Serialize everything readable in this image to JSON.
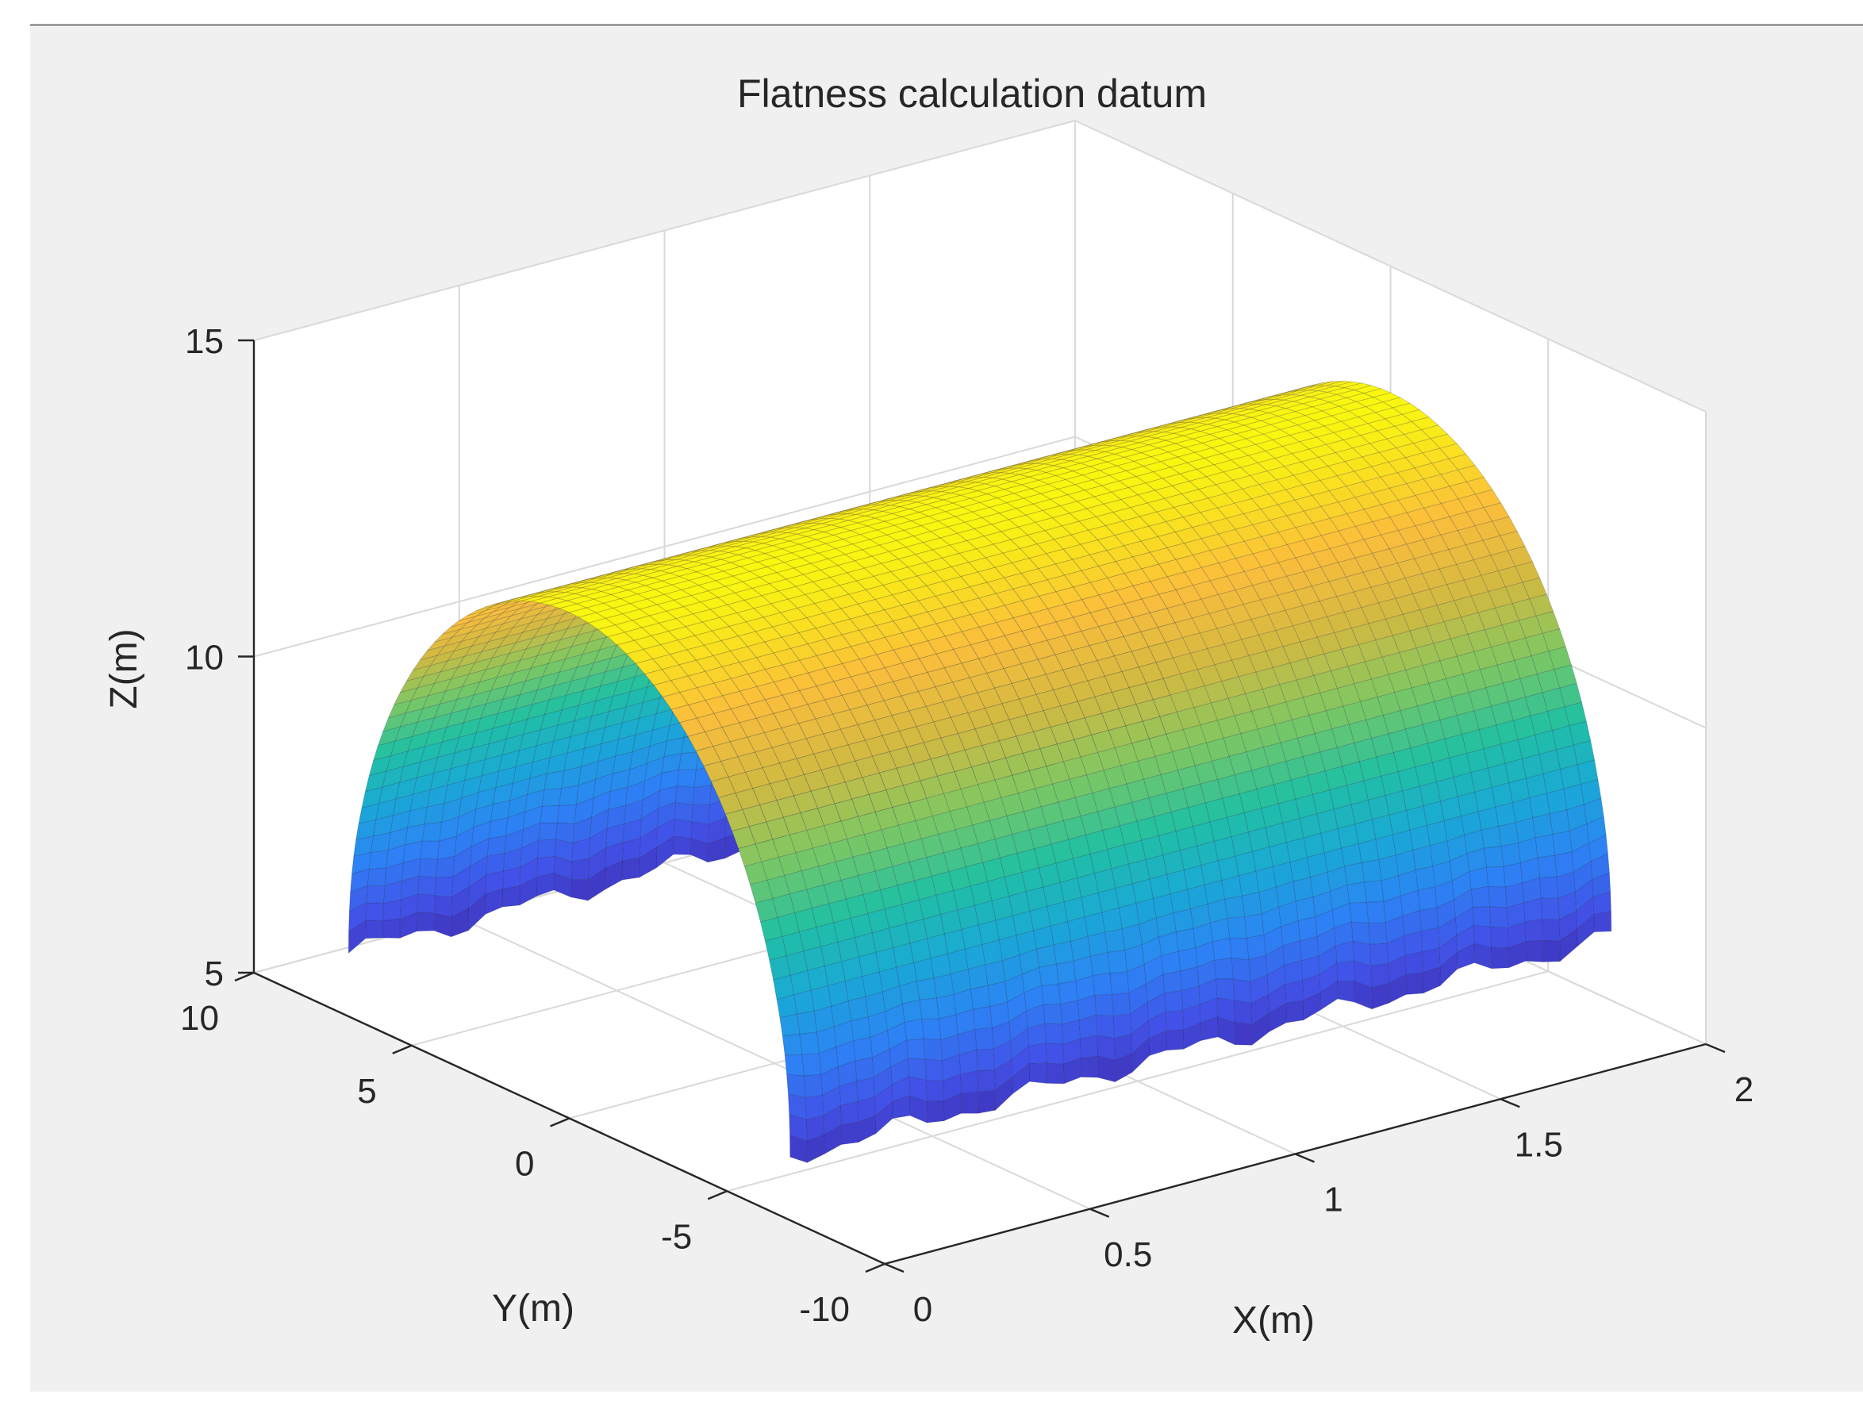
{
  "colors": {
    "figure_bg": "#f0f0f0",
    "axes_bg": "#ffffff",
    "grid": "#d9d9d9",
    "axis": "#262626",
    "text": "#262626",
    "colormap": [
      "#3e26a8",
      "#4252e8",
      "#2c84f5",
      "#1aa9d6",
      "#21c0a2",
      "#7cc863",
      "#d0ba42",
      "#fbbd3c",
      "#f9f70f"
    ]
  },
  "chart_data": {
    "type": "surface",
    "title": "Flatness calculation datum",
    "xlabel": "X(m)",
    "ylabel": "Y(m)",
    "zlabel": "Z(m)",
    "xlim": [
      0,
      2
    ],
    "ylim": [
      -10,
      10
    ],
    "zlim": [
      5,
      15
    ],
    "xticks": [
      0,
      0.5,
      1,
      1.5,
      2
    ],
    "xtick_labels": [
      "0",
      "0.5",
      "1",
      "1.5",
      "2"
    ],
    "yticks": [
      -10,
      -5,
      0,
      5,
      10
    ],
    "ytick_labels": [
      "-10",
      "-5",
      "0",
      "5",
      "10"
    ],
    "zticks": [
      5,
      10,
      15
    ],
    "ztick_labels": [
      "5",
      "10",
      "15"
    ],
    "grid": true,
    "colormap": "parula",
    "surface": {
      "shape": "half-cylinder tunnel vault along X",
      "x_range": [
        0,
        2
      ],
      "arch_center_y": 0,
      "arch_radius": 7,
      "arch_base_z": 6,
      "arch_crown_z": 13
    }
  }
}
